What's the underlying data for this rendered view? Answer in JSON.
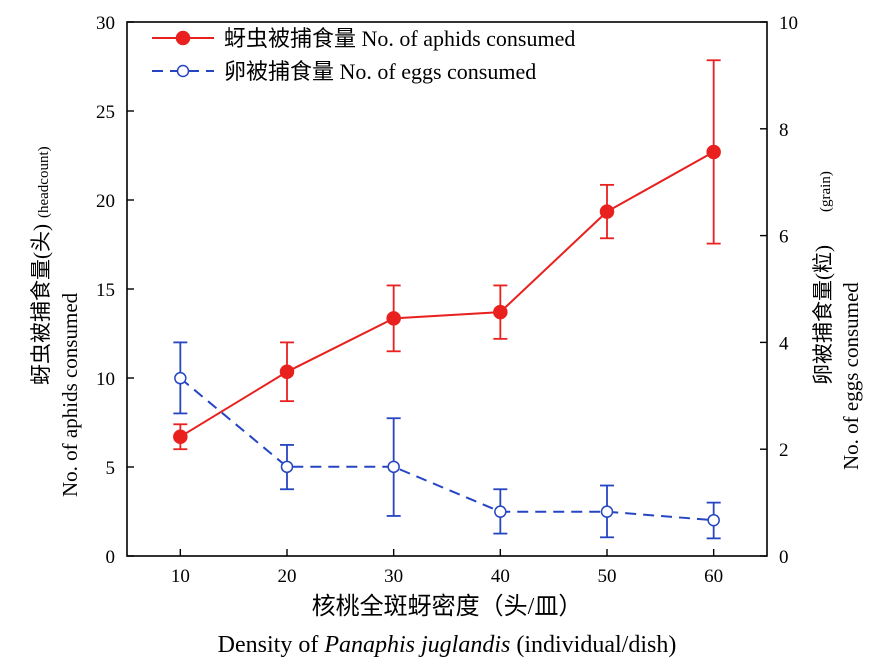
{
  "chart_data": {
    "type": "line",
    "x": [
      10,
      20,
      30,
      40,
      50,
      60
    ],
    "xlim": [
      5,
      65
    ],
    "x_ticks": [
      "10",
      "20",
      "30",
      "40",
      "50",
      "60"
    ],
    "xlabel_cn": "核桃全斑蚜密度（头/皿）",
    "xlabel_en_pre": "Density of ",
    "xlabel_en_italic": "Panaphis juglandis",
    "xlabel_en_post": " (individual/dish)",
    "ylim_left": [
      0,
      30
    ],
    "y_ticks_left": [
      "0",
      "5",
      "10",
      "15",
      "20",
      "25",
      "30"
    ],
    "ylim_right": [
      0,
      10
    ],
    "y_ticks_right": [
      "0",
      "2",
      "4",
      "6",
      "8",
      "10"
    ],
    "ylabel_left_cn": "蚜虫被捕食量(头)",
    "ylabel_left_small": "(headcount)",
    "ylabel_left_en": "No. of aphids consumed",
    "ylabel_right_cn": "卵被捕食量(粒)",
    "ylabel_right_small": "(grain)",
    "ylabel_right_en": "No. of eggs consumed",
    "series": [
      {
        "name": "蚜虫被捕食量  No. of aphids consumed",
        "axis": "left",
        "color": "#e8201e",
        "marker": "filled-circle",
        "line": "solid",
        "values": [
          6.7,
          10.35,
          13.35,
          13.7,
          19.35,
          22.7
        ],
        "err_low": [
          6.0,
          8.7,
          11.5,
          12.2,
          17.85,
          17.55
        ],
        "err_high": [
          7.4,
          12.0,
          15.2,
          15.2,
          20.85,
          27.85
        ]
      },
      {
        "name": "卵被捕食量  No. of eggs consumed",
        "axis": "right",
        "color": "#2645c2",
        "marker": "open-circle",
        "line": "dashed",
        "values": [
          3.33,
          1.67,
          1.67,
          0.83,
          0.83,
          0.67
        ],
        "err_low": [
          2.67,
          1.25,
          0.75,
          0.42,
          0.35,
          0.33
        ],
        "err_high": [
          4.0,
          2.08,
          2.58,
          1.25,
          1.32,
          1.0
        ]
      }
    ],
    "grid": false,
    "legend": "top-left"
  }
}
